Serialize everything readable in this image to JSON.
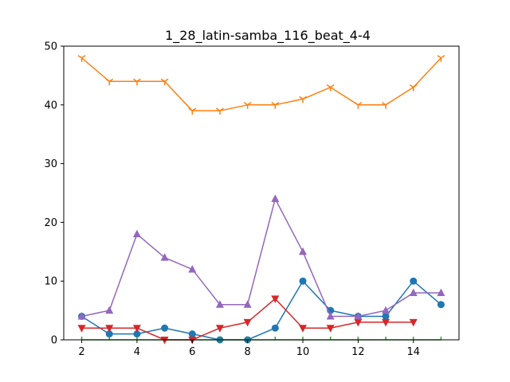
{
  "chart_data": {
    "type": "line",
    "title": "1_28_latin-samba_116_beat_4-4",
    "xlabel": "",
    "ylabel": "",
    "xlim": [
      1.35,
      15.65
    ],
    "ylim": [
      0,
      50
    ],
    "xticks": [
      2,
      4,
      6,
      8,
      10,
      12,
      14
    ],
    "yticks": [
      0,
      10,
      20,
      30,
      40,
      50
    ],
    "grid": false,
    "legend": "none",
    "x": [
      2,
      3,
      4,
      5,
      6,
      7,
      8,
      9,
      10,
      11,
      12,
      13,
      14,
      15
    ],
    "series": [
      {
        "color": "#1f77b4",
        "marker": "circle",
        "x": [
          2,
          3,
          4,
          5,
          6,
          7,
          8,
          9,
          10,
          11,
          12,
          13,
          14,
          15
        ],
        "values": [
          4,
          1,
          1,
          2,
          1,
          0,
          0,
          2,
          10,
          5,
          4,
          4,
          10,
          6
        ]
      },
      {
        "color": "#ff7f0e",
        "marker": "tri-down",
        "x": [
          2,
          3,
          4,
          5,
          6,
          7,
          8,
          9,
          10,
          11,
          12,
          13,
          14,
          15
        ],
        "values": [
          48,
          44,
          44,
          44,
          39,
          39,
          40,
          40,
          41,
          43,
          40,
          40,
          43,
          48
        ]
      },
      {
        "color": "#2ca02c",
        "marker": "tick-up",
        "x": [
          2,
          3,
          4,
          5,
          6,
          7,
          8,
          9,
          10,
          11,
          12,
          13,
          14,
          15
        ],
        "values": [
          0,
          0,
          0,
          0,
          0,
          0,
          0,
          0,
          0,
          0,
          0,
          0,
          0,
          0
        ]
      },
      {
        "color": "#d62728",
        "marker": "triangle-down",
        "x": [
          2,
          3,
          4,
          5,
          6,
          7,
          8,
          9,
          10,
          11,
          12,
          13,
          14
        ],
        "values": [
          2,
          2,
          2,
          0,
          0,
          2,
          3,
          7,
          2,
          2,
          3,
          3,
          3
        ]
      },
      {
        "color": "#9467bd",
        "marker": "triangle-up",
        "x": [
          2,
          3,
          4,
          5,
          6,
          7,
          8,
          9,
          10,
          11,
          12,
          13,
          14,
          15
        ],
        "values": [
          4,
          5,
          18,
          14,
          12,
          6,
          6,
          24,
          15,
          4,
          4,
          5,
          8,
          8
        ]
      }
    ]
  }
}
